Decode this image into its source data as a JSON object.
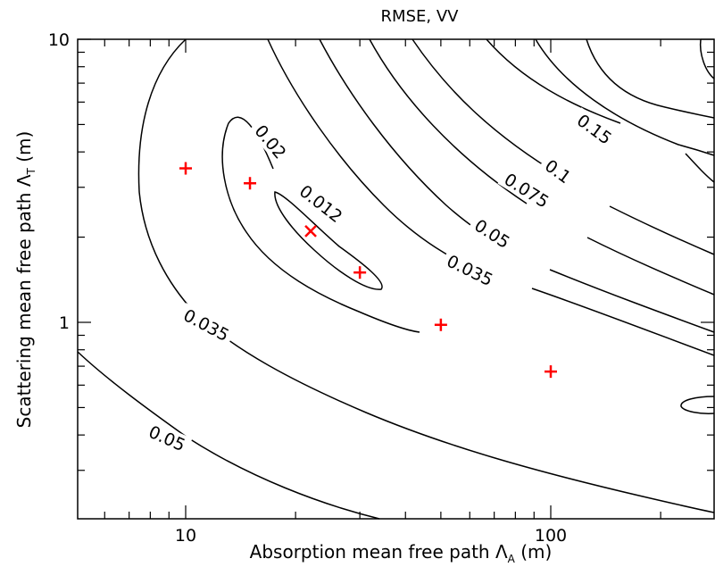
{
  "chart_data": {
    "type": "contour",
    "title": "RMSE, VV",
    "xlabel": {
      "main": "Absorption mean free path  Λ",
      "sub": "A",
      "unit": " (m)"
    },
    "ylabel": {
      "main": "Scattering mean free path  Λ",
      "sub": "T",
      "unit": " (m)"
    },
    "x_scale": "log",
    "y_scale": "log",
    "xlim": [
      5,
      300
    ],
    "ylim": [
      0.23,
      10
    ],
    "x_ticks": [
      {
        "value": 10,
        "label": "10"
      },
      {
        "value": 100,
        "label": "100"
      }
    ],
    "y_ticks": [
      {
        "value": 1,
        "label": "1"
      },
      {
        "value": 10,
        "label": "10"
      }
    ],
    "contour_levels": [
      "0.012",
      "0.02",
      "0.035",
      "0.05",
      "0.075",
      "0.1",
      "0.15"
    ],
    "contour_labels": [
      {
        "text": "0.012",
        "x": 23.5,
        "y": 2.63,
        "angle": 38
      },
      {
        "text": "0.02",
        "x": 17.1,
        "y": 4.35,
        "angle": 50
      },
      {
        "text": "0.035",
        "x": 11.4,
        "y": 0.98,
        "angle": 28
      },
      {
        "text": "0.05",
        "x": 8.9,
        "y": 0.39,
        "angle": 24
      },
      {
        "text": "0.035",
        "x": 60.1,
        "y": 1.53,
        "angle": 26
      },
      {
        "text": "0.05",
        "x": 69.2,
        "y": 2.06,
        "angle": 33
      },
      {
        "text": "0.075",
        "x": 86.0,
        "y": 2.93,
        "angle": 32
      },
      {
        "text": "0.1",
        "x": 104.8,
        "y": 3.42,
        "angle": 36
      },
      {
        "text": "0.15",
        "x": 131.8,
        "y": 4.82,
        "angle": 36
      }
    ],
    "markers": [
      {
        "symbol": "+",
        "x": 10,
        "y": 3.5
      },
      {
        "symbol": "+",
        "x": 15,
        "y": 3.1
      },
      {
        "symbol": "x",
        "x": 22,
        "y": 2.1
      },
      {
        "symbol": "+",
        "x": 30,
        "y": 1.5
      },
      {
        "symbol": "+",
        "x": 50,
        "y": 0.98
      },
      {
        "symbol": "+",
        "x": 100,
        "y": 0.67
      }
    ],
    "colors": {
      "contour": "#000000",
      "marker": "#ff0000"
    }
  }
}
